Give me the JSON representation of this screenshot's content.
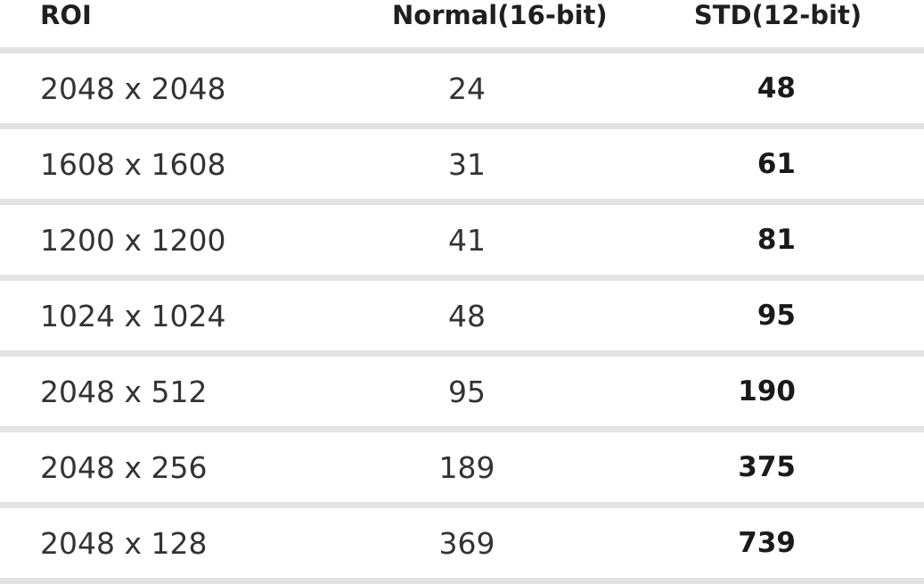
{
  "table": {
    "columns": [
      {
        "label": "ROI"
      },
      {
        "label": "Normal(16-bit)"
      },
      {
        "label": "STD(12-bit)"
      }
    ],
    "rows": [
      {
        "roi": "2048 x 2048",
        "normal": "24",
        "std": "48"
      },
      {
        "roi": "1608 x 1608",
        "normal": "31",
        "std": "61"
      },
      {
        "roi": "1200 x 1200",
        "normal": "41",
        "std": "81"
      },
      {
        "roi": "1024 x 1024",
        "normal": "48",
        "std": "95"
      },
      {
        "roi": "2048 x 512",
        "normal": "95",
        "std": "190"
      },
      {
        "roi": "2048 x 256",
        "normal": "189",
        "std": "375"
      },
      {
        "roi": "2048 x 128",
        "normal": "369",
        "std": "739"
      }
    ]
  },
  "colors": {
    "separator": "#e3e3e3",
    "header_text": "#1f1f1f",
    "body_text": "#333333",
    "bold_value_text": "#1a1a1a",
    "background": "#ffffff"
  }
}
